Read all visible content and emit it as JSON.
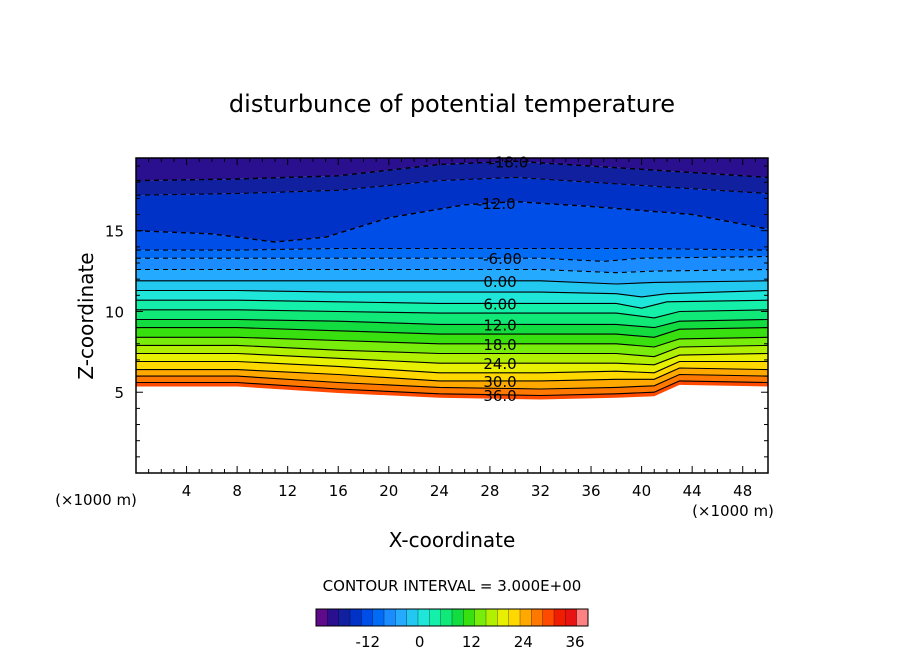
{
  "chart_data": {
    "type": "contour",
    "title": "disturbunce of potential temperature",
    "xlabel": "X-coordinate",
    "ylabel": "Z-coordinate",
    "x_unit_label": "(×1000 m)",
    "y_unit_label": "(×1000 m)",
    "xlim": [
      0,
      50
    ],
    "ylim": [
      0,
      19.5
    ],
    "x_ticks": [
      "4",
      "8",
      "12",
      "16",
      "20",
      "24",
      "28",
      "32",
      "36",
      "40",
      "44",
      "48"
    ],
    "y_ticks": [
      "5",
      "10",
      "15"
    ],
    "contour_interval_text": "CONTOUR INTERVAL = 3.000E+00",
    "contour_interval": 3,
    "contour_labels": [
      "-18.0",
      "-12.0",
      "-6.00",
      "0.00",
      "6.00",
      "12.0",
      "18.0",
      "24.0",
      "30.0",
      "36.0"
    ],
    "contour_lines": [
      {
        "level": -18,
        "dashed": true,
        "points": [
          [
            0,
            18.1
          ],
          [
            8,
            18.2
          ],
          [
            16,
            18.4
          ],
          [
            24,
            19.1
          ],
          [
            30,
            19.3
          ],
          [
            36,
            19.0
          ],
          [
            44,
            18.6
          ],
          [
            50,
            18.3
          ]
        ]
      },
      {
        "level": -15,
        "dashed": true,
        "points": [
          [
            0,
            17.2
          ],
          [
            8,
            17.3
          ],
          [
            16,
            17.5
          ],
          [
            24,
            18.1
          ],
          [
            30,
            18.3
          ],
          [
            36,
            18.0
          ],
          [
            44,
            17.6
          ],
          [
            50,
            17.3
          ]
        ]
      },
      {
        "level": -12,
        "dashed": true,
        "points": [
          [
            0,
            15.0
          ],
          [
            6,
            14.8
          ],
          [
            11,
            14.3
          ],
          [
            15,
            14.6
          ],
          [
            20,
            15.8
          ],
          [
            26,
            16.6
          ],
          [
            30,
            16.8
          ],
          [
            36,
            16.5
          ],
          [
            44,
            16.0
          ],
          [
            50,
            15.1
          ]
        ]
      },
      {
        "level": -9,
        "dashed": true,
        "points": [
          [
            0,
            13.8
          ],
          [
            8,
            13.8
          ],
          [
            16,
            13.9
          ],
          [
            24,
            13.9
          ],
          [
            32,
            13.9
          ],
          [
            40,
            13.9
          ],
          [
            50,
            13.8
          ]
        ]
      },
      {
        "level": -6,
        "dashed": true,
        "points": [
          [
            0,
            13.3
          ],
          [
            8,
            13.3
          ],
          [
            16,
            13.3
          ],
          [
            24,
            13.3
          ],
          [
            32,
            13.3
          ],
          [
            37,
            13.1
          ],
          [
            40,
            13.3
          ],
          [
            50,
            13.4
          ]
        ]
      },
      {
        "level": -3,
        "dashed": true,
        "points": [
          [
            0,
            12.6
          ],
          [
            8,
            12.6
          ],
          [
            16,
            12.6
          ],
          [
            24,
            12.6
          ],
          [
            32,
            12.6
          ],
          [
            38,
            12.4
          ],
          [
            41,
            12.5
          ],
          [
            50,
            12.6
          ]
        ]
      },
      {
        "level": 0,
        "dashed": false,
        "points": [
          [
            0,
            11.9
          ],
          [
            8,
            11.9
          ],
          [
            16,
            11.9
          ],
          [
            24,
            11.9
          ],
          [
            32,
            11.9
          ],
          [
            38,
            11.7
          ],
          [
            41,
            11.8
          ],
          [
            50,
            11.9
          ]
        ]
      },
      {
        "level": 3,
        "dashed": false,
        "points": [
          [
            0,
            11.3
          ],
          [
            8,
            11.3
          ],
          [
            16,
            11.2
          ],
          [
            24,
            11.2
          ],
          [
            32,
            11.2
          ],
          [
            38,
            11.1
          ],
          [
            40,
            10.9
          ],
          [
            42,
            11.1
          ],
          [
            50,
            11.3
          ]
        ]
      },
      {
        "level": 6,
        "dashed": false,
        "points": [
          [
            0,
            10.7
          ],
          [
            8,
            10.7
          ],
          [
            16,
            10.6
          ],
          [
            24,
            10.5
          ],
          [
            32,
            10.5
          ],
          [
            38,
            10.5
          ],
          [
            40,
            10.2
          ],
          [
            42,
            10.6
          ],
          [
            50,
            10.7
          ]
        ]
      },
      {
        "level": 9,
        "dashed": false,
        "points": [
          [
            0,
            10.1
          ],
          [
            8,
            10.1
          ],
          [
            16,
            10.0
          ],
          [
            24,
            9.9
          ],
          [
            32,
            9.9
          ],
          [
            38,
            9.9
          ],
          [
            41,
            9.6
          ],
          [
            43,
            10.0
          ],
          [
            50,
            10.1
          ]
        ]
      },
      {
        "level": 12,
        "dashed": false,
        "points": [
          [
            0,
            9.5
          ],
          [
            8,
            9.5
          ],
          [
            16,
            9.4
          ],
          [
            24,
            9.2
          ],
          [
            32,
            9.2
          ],
          [
            38,
            9.2
          ],
          [
            41,
            9.0
          ],
          [
            43,
            9.4
          ],
          [
            50,
            9.5
          ]
        ]
      },
      {
        "level": 15,
        "dashed": false,
        "points": [
          [
            0,
            9.0
          ],
          [
            8,
            9.0
          ],
          [
            16,
            8.8
          ],
          [
            24,
            8.6
          ],
          [
            32,
            8.6
          ],
          [
            38,
            8.6
          ],
          [
            41,
            8.4
          ],
          [
            43,
            8.9
          ],
          [
            50,
            9.0
          ]
        ]
      },
      {
        "level": 18,
        "dashed": false,
        "points": [
          [
            0,
            8.4
          ],
          [
            8,
            8.4
          ],
          [
            16,
            8.2
          ],
          [
            24,
            8.0
          ],
          [
            32,
            8.0
          ],
          [
            38,
            8.0
          ],
          [
            41,
            7.8
          ],
          [
            43,
            8.3
          ],
          [
            50,
            8.4
          ]
        ]
      },
      {
        "level": 21,
        "dashed": false,
        "points": [
          [
            0,
            7.9
          ],
          [
            8,
            7.9
          ],
          [
            16,
            7.6
          ],
          [
            24,
            7.4
          ],
          [
            32,
            7.4
          ],
          [
            38,
            7.4
          ],
          [
            41,
            7.2
          ],
          [
            43,
            7.8
          ],
          [
            50,
            7.9
          ]
        ]
      },
      {
        "level": 24,
        "dashed": false,
        "points": [
          [
            0,
            7.4
          ],
          [
            8,
            7.4
          ],
          [
            16,
            7.1
          ],
          [
            24,
            6.8
          ],
          [
            32,
            6.8
          ],
          [
            38,
            6.8
          ],
          [
            41,
            6.7
          ],
          [
            43,
            7.3
          ],
          [
            50,
            7.4
          ]
        ]
      },
      {
        "level": 27,
        "dashed": false,
        "points": [
          [
            0,
            6.9
          ],
          [
            8,
            6.9
          ],
          [
            16,
            6.6
          ],
          [
            24,
            6.2
          ],
          [
            32,
            6.2
          ],
          [
            38,
            6.3
          ],
          [
            41,
            6.2
          ],
          [
            43,
            6.9
          ],
          [
            50,
            6.9
          ]
        ]
      },
      {
        "level": 30,
        "dashed": false,
        "points": [
          [
            0,
            6.4
          ],
          [
            8,
            6.4
          ],
          [
            16,
            6.1
          ],
          [
            24,
            5.7
          ],
          [
            32,
            5.7
          ],
          [
            38,
            5.8
          ],
          [
            41,
            5.8
          ],
          [
            43,
            6.5
          ],
          [
            50,
            6.4
          ]
        ]
      },
      {
        "level": 33,
        "dashed": false,
        "points": [
          [
            0,
            6.0
          ],
          [
            8,
            6.0
          ],
          [
            16,
            5.6
          ],
          [
            24,
            5.3
          ],
          [
            32,
            5.2
          ],
          [
            38,
            5.3
          ],
          [
            41,
            5.4
          ],
          [
            43,
            6.1
          ],
          [
            50,
            6.0
          ]
        ]
      },
      {
        "level": 36,
        "dashed": false,
        "points": [
          [
            0,
            5.6
          ],
          [
            8,
            5.6
          ],
          [
            16,
            5.2
          ],
          [
            24,
            4.9
          ],
          [
            32,
            4.8
          ],
          [
            38,
            4.9
          ],
          [
            41,
            5.0
          ],
          [
            43,
            5.7
          ],
          [
            50,
            5.6
          ]
        ]
      }
    ],
    "colorbar": {
      "tick_labels": [
        "-12",
        "0",
        "12",
        "24",
        "36"
      ],
      "tick_values": [
        -12,
        0,
        12,
        24,
        36
      ],
      "range": [
        -24,
        39
      ],
      "colors": [
        "#5e0a8a",
        "#2a0f8f",
        "#10209e",
        "#0032c8",
        "#004ee8",
        "#006cf5",
        "#1a8cff",
        "#24aaff",
        "#22c8f0",
        "#1ee6d8",
        "#14f0aa",
        "#10e878",
        "#12dc40",
        "#38e010",
        "#78ec0a",
        "#b0f000",
        "#e6f000",
        "#ffd800",
        "#ffa800",
        "#ff7800",
        "#ff4a00",
        "#f01e00",
        "#e81414",
        "#ff8282"
      ]
    }
  }
}
